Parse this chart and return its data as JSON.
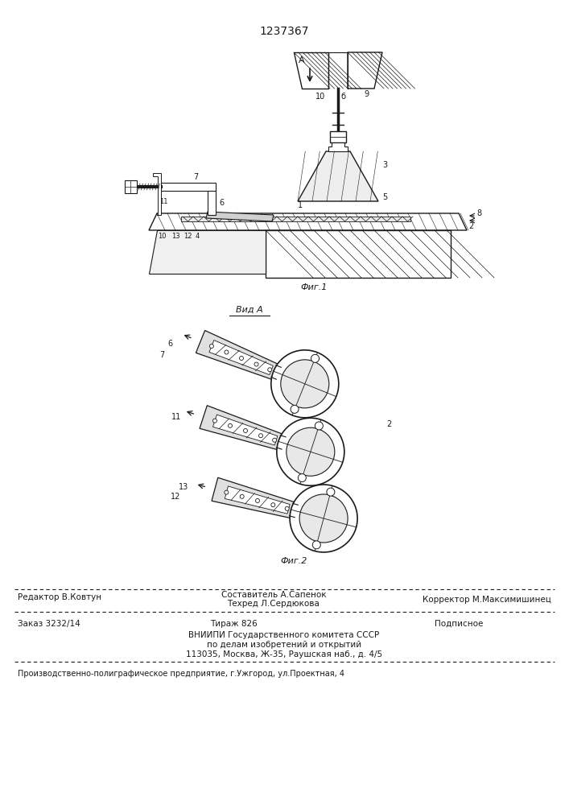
{
  "patent_number": "1237367",
  "background_color": "#ffffff",
  "text_color": "#1a1a1a",
  "fig1_caption": "Фиг.1",
  "fig2_caption": "Фиг.2",
  "view_label": "Вид А",
  "footer_line1_left": "Редактор В.Ковтун",
  "footer_line1_center1": "Составитель А.Сапенок",
  "footer_line1_center2": "Техред Л.Сердюкова",
  "footer_line1_right": "Корректор М.Максимишинец",
  "footer_line2_left": "Заказ 3232/14",
  "footer_line2_center": "Тираж 826",
  "footer_line2_right": "Подписное",
  "footer_line3": "ВНИИПИ Государственного комитета СССР",
  "footer_line4": "по делам изобретений и открытий",
  "footer_line5": "113035, Москва, Ж-35, Раушская наб., д. 4/5",
  "footer_bottom": "Производственно-полиграфическое предприятие, г.Ужгород, ул.Проектная, 4"
}
